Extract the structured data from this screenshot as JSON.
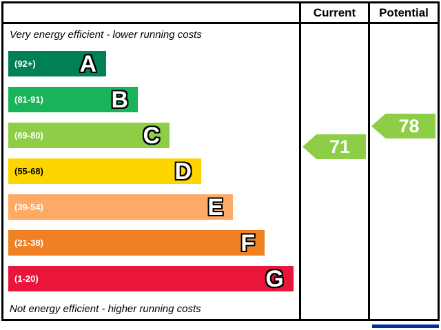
{
  "header": {
    "current_label": "Current",
    "potential_label": "Potential"
  },
  "notes": {
    "top": "Very energy efficient - lower running costs",
    "bottom": "Not energy efficient - higher running costs"
  },
  "chart_data": {
    "type": "bar",
    "description": "Energy efficiency rating bands A-G with current and potential rating arrows",
    "bands": [
      {
        "letter": "A",
        "range": "(92+)",
        "color": "#008054",
        "width_pct": 34,
        "range_text_color": "#ffffff"
      },
      {
        "letter": "B",
        "range": "(81-91)",
        "color": "#19b459",
        "width_pct": 45,
        "range_text_color": "#ffffff"
      },
      {
        "letter": "C",
        "range": "(69-80)",
        "color": "#8dce46",
        "width_pct": 56,
        "range_text_color": "#ffffff"
      },
      {
        "letter": "D",
        "range": "(55-68)",
        "color": "#ffd500",
        "width_pct": 67,
        "range_text_color": "#000000"
      },
      {
        "letter": "E",
        "range": "(39-54)",
        "color": "#fcaa65",
        "width_pct": 78,
        "range_text_color": "#ffffff"
      },
      {
        "letter": "F",
        "range": "(21-38)",
        "color": "#ef8023",
        "width_pct": 89,
        "range_text_color": "#ffffff"
      },
      {
        "letter": "G",
        "range": "(1-20)",
        "color": "#e9153b",
        "width_pct": 99,
        "range_text_color": "#ffffff"
      }
    ],
    "current": {
      "value": 71,
      "arrow_color": "#8dce46"
    },
    "potential": {
      "value": 78,
      "arrow_color": "#8dce46"
    },
    "footer_accent_color": "#003399"
  }
}
